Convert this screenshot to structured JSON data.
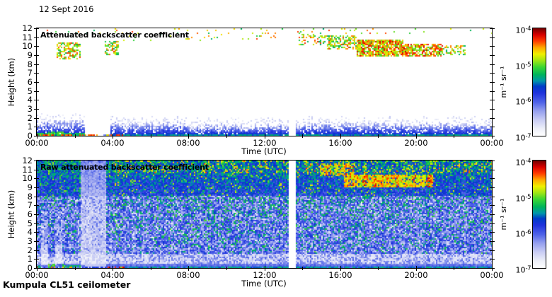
{
  "date_label": "12 Sept 2016",
  "instrument_label": "Kumpula CL51 ceilometer",
  "colormap": [
    [
      0.0,
      "#ffffff"
    ],
    [
      0.07,
      "#eceef8"
    ],
    [
      0.15,
      "#c8ccf4"
    ],
    [
      0.23,
      "#96a0ee"
    ],
    [
      0.31,
      "#5064e8"
    ],
    [
      0.4,
      "#1e32dc"
    ],
    [
      0.46,
      "#003cc8"
    ],
    [
      0.51,
      "#0096aa"
    ],
    [
      0.57,
      "#00b45a"
    ],
    [
      0.64,
      "#3cd732"
    ],
    [
      0.7,
      "#a0e614"
    ],
    [
      0.76,
      "#f0f000"
    ],
    [
      0.82,
      "#ffa800"
    ],
    [
      0.88,
      "#ff3c00"
    ],
    [
      0.94,
      "#d80000"
    ],
    [
      1.0,
      "#700000"
    ]
  ],
  "chart_data": [
    {
      "type": "heatmap",
      "title": "Attenuated backscatter coefficient",
      "x": {
        "label": "Time (UTC)",
        "range_hours": [
          0,
          24
        ],
        "major_tick_hours": 4,
        "minor_tick_hours": 2,
        "tick_labels": [
          "00:00",
          "04:00",
          "08:00",
          "12:00",
          "16:00",
          "20:00",
          "00:00"
        ]
      },
      "y": {
        "label": "Height (km)",
        "range_km": [
          0,
          12
        ],
        "tick_step_km": 1,
        "tick_labels": [
          "0",
          "1",
          "2",
          "3",
          "4",
          "5",
          "6",
          "7",
          "8",
          "9",
          "10",
          "11",
          "12"
        ]
      },
      "colorbar": {
        "unit": "m⁻¹ sr⁻¹",
        "ticks": [
          {
            "base": "10",
            "exp": "-4"
          },
          {
            "base": "10",
            "exp": "-5"
          },
          {
            "base": "10",
            "exp": "-6"
          },
          {
            "base": "10",
            "exp": "-7"
          }
        ]
      },
      "features": {
        "boundary_layer_top_km": {
          "night": 1.35,
          "morning": 1.05,
          "midday": 0.85,
          "evening": 1.0,
          "spike_km": 0.55
        },
        "data_gaps_hours": [
          [
            2.55,
            3.85
          ],
          [
            13.32,
            13.68
          ]
        ],
        "surface_green_layer": {
          "t": [
            0,
            2.55
          ],
          "h": [
            0.04,
            0.38
          ]
        },
        "surface_teal_line": {
          "t": [
            4.4,
            24
          ],
          "h": [
            0,
            0.18
          ]
        },
        "surface_red_specks": {
          "t": [
            2.5,
            4.6
          ],
          "h": [
            0,
            0.2
          ]
        },
        "clouds": [
          {
            "t": [
              1.05,
              2.3
            ],
            "h": [
              8.5,
              10.4
            ],
            "density": 0.5
          },
          {
            "t": [
              3.55,
              4.35
            ],
            "h": [
              9.0,
              10.5
            ],
            "density": 0.45
          },
          {
            "t": [
              13.8,
              15.3
            ],
            "h": [
              10.1,
              11.4
            ],
            "density": 0.3
          },
          {
            "t": [
              15.3,
              16.9
            ],
            "h": [
              9.7,
              11.2
            ],
            "density": 0.5
          },
          {
            "t": [
              16.9,
              19.3
            ],
            "h": [
              8.8,
              10.7
            ],
            "density": 0.85
          },
          {
            "t": [
              19.3,
              21.4
            ],
            "h": [
              8.9,
              10.3
            ],
            "density": 0.75
          },
          {
            "t": [
              21.4,
              22.6
            ],
            "h": [
              9.0,
              10.1
            ],
            "density": 0.4
          },
          {
            "t": [
              0,
              24
            ],
            "h": [
              11.3,
              12.0
            ],
            "density": 0.05
          },
          {
            "t": [
              4.5,
              14
            ],
            "h": [
              10.6,
              11.6
            ],
            "density": 0.03
          }
        ]
      }
    },
    {
      "type": "heatmap",
      "title": "Raw attenuated backscatter coefficient",
      "x": {
        "label": "Time (UTC)",
        "range_hours": [
          0,
          24
        ],
        "major_tick_hours": 4,
        "minor_tick_hours": 2,
        "tick_labels": [
          "00:00",
          "04:00",
          "08:00",
          "12:00",
          "16:00",
          "20:00",
          "00:00"
        ]
      },
      "y": {
        "label": "Height (km)",
        "range_km": [
          0,
          12
        ],
        "tick_step_km": 1,
        "tick_labels": [
          "0",
          "1",
          "2",
          "3",
          "4",
          "5",
          "6",
          "7",
          "8",
          "9",
          "10",
          "11",
          "12"
        ]
      },
      "colorbar": {
        "unit": "m⁻¹ sr⁻¹",
        "ticks": [
          {
            "base": "10",
            "exp": "-4"
          },
          {
            "base": "10",
            "exp": "-5"
          },
          {
            "base": "10",
            "exp": "-6"
          },
          {
            "base": "10",
            "exp": "-7"
          }
        ]
      },
      "features": {
        "data_gaps_hours": [
          [
            13.32,
            13.68
          ]
        ],
        "washed_band_hours": [
          2.3,
          3.65
        ],
        "light_columns": [
          {
            "t": [
              0.25,
              0.6
            ]
          },
          {
            "t": [
              0.95,
              1.35
            ]
          }
        ],
        "strong_bands": [
          {
            "t": [
              14.9,
              16.7
            ],
            "h": [
              10.2,
              11.7
            ],
            "density": 0.65
          },
          {
            "t": [
              16.2,
              20.9
            ],
            "h": [
              9.0,
              10.4
            ],
            "density": 0.85
          }
        ],
        "surface_green_layer": {
          "t": [
            0,
            2.55
          ],
          "h": [
            0.04,
            0.38
          ]
        },
        "surface_teal_line": {
          "t": [
            4.4,
            24
          ],
          "h": [
            0,
            0.18
          ]
        },
        "surface_red_specks": {
          "t": [
            2.5,
            4.6
          ],
          "h": [
            0,
            0.2
          ]
        }
      }
    }
  ]
}
